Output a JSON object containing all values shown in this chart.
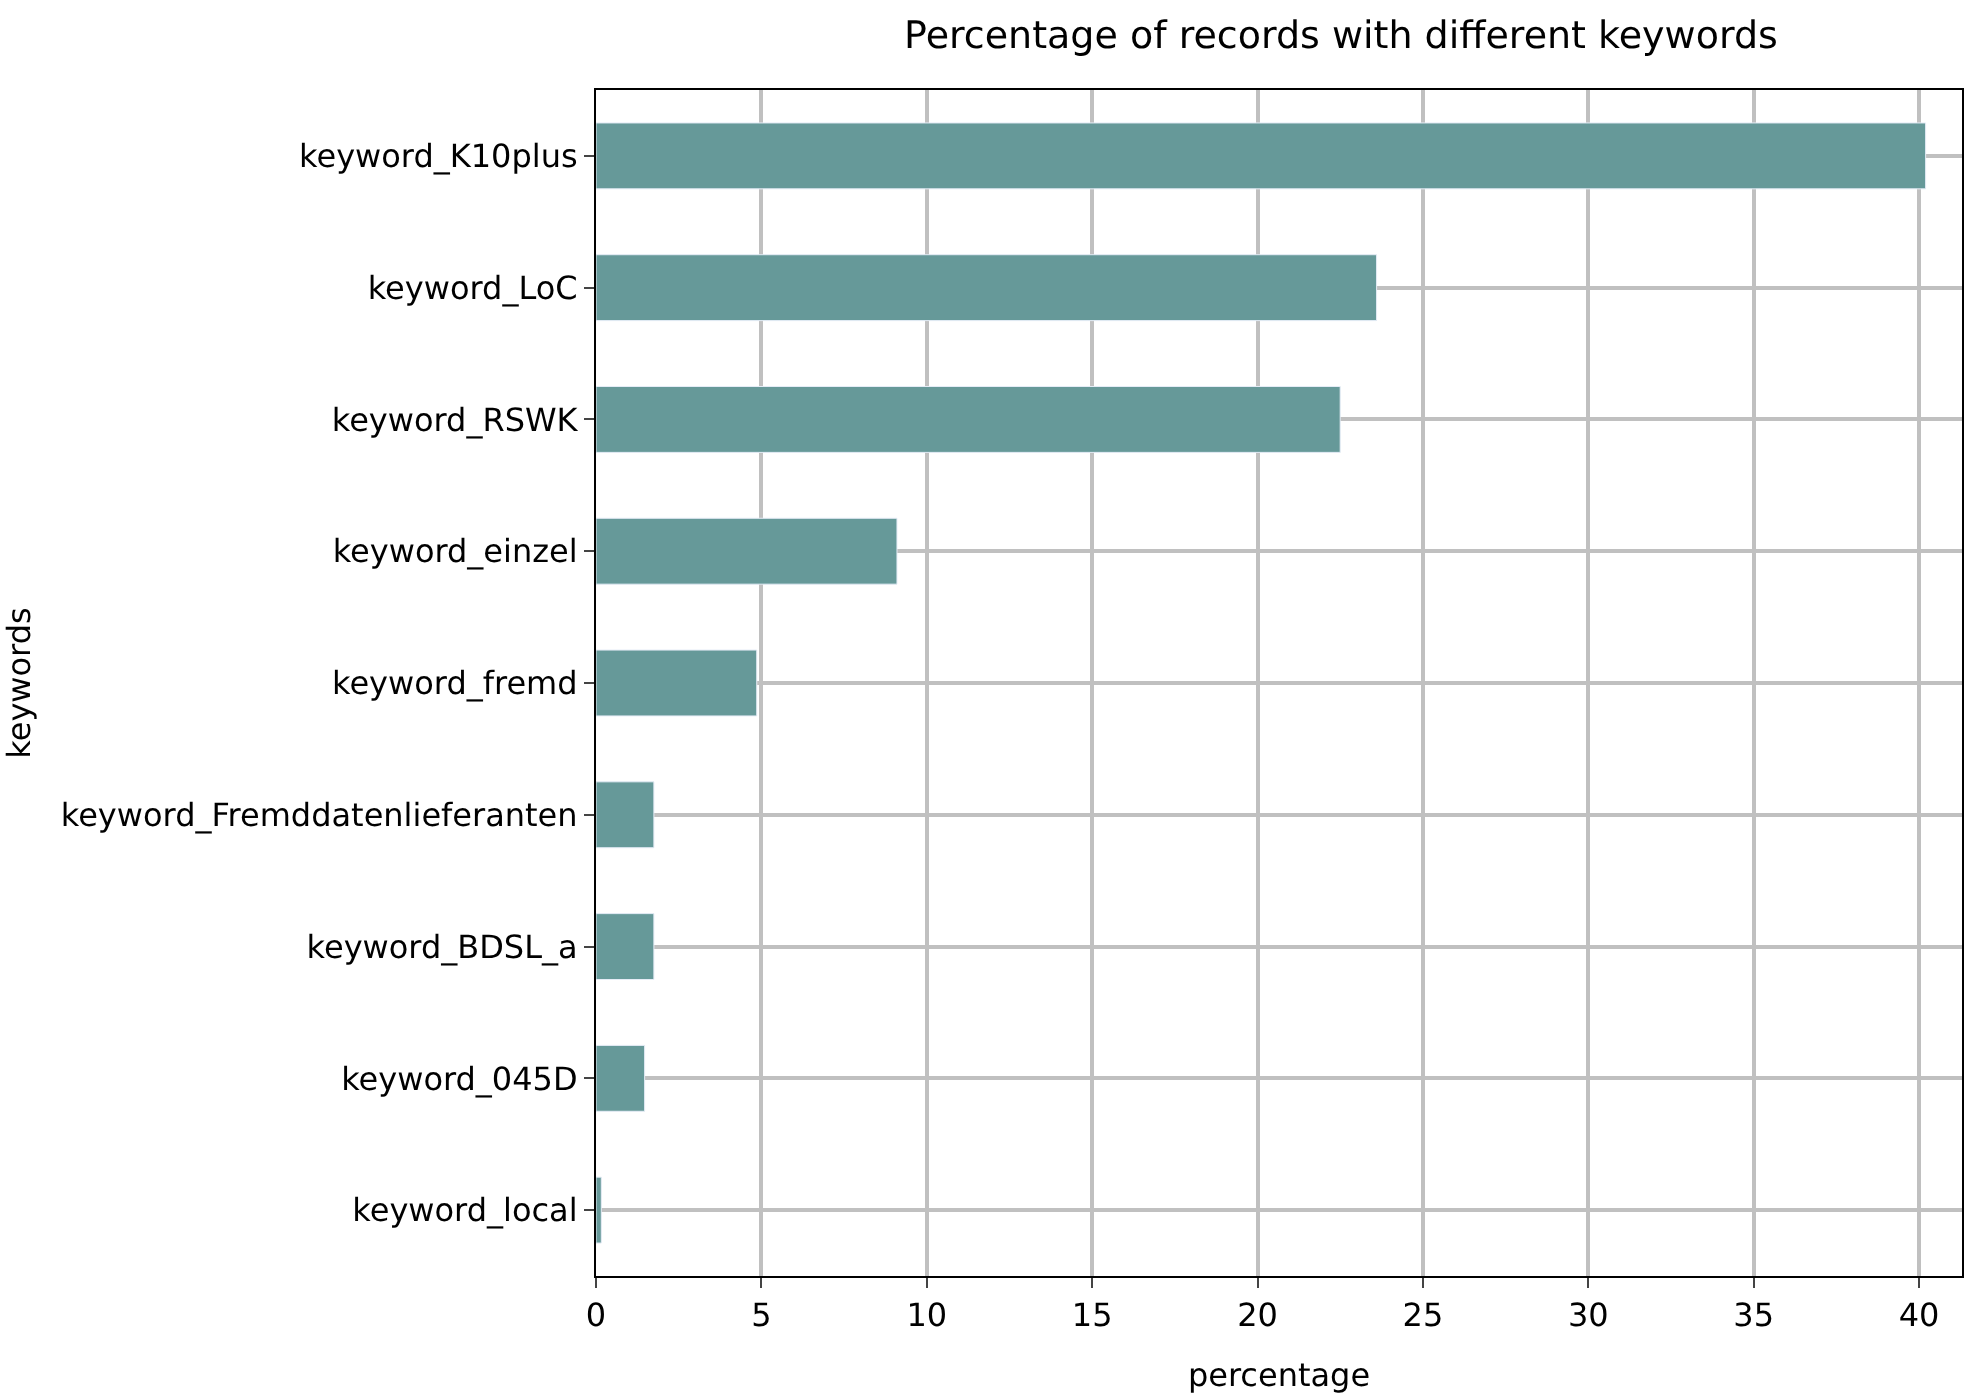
{
  "chart_data": {
    "type": "bar",
    "orientation": "horizontal",
    "title": "Percentage of records with different keywords",
    "xlabel": "percentage",
    "ylabel": "keywords",
    "categories": [
      "keyword_K10plus",
      "keyword_LoC",
      "keyword_RSWK",
      "keyword_einzel",
      "keyword_fremd",
      "keyword_Fremddatenlieferanten",
      "keyword_BDSL_a",
      "keyword_045D",
      "keyword_local"
    ],
    "values": [
      40.2,
      23.6,
      22.5,
      9.1,
      4.86,
      1.75,
      1.75,
      1.47,
      0.16
    ],
    "color": "#669999",
    "xlim": [
      0,
      41.3
    ],
    "xticks": [
      0,
      5,
      10,
      15,
      20,
      25,
      30,
      35,
      40
    ],
    "grid": true
  }
}
